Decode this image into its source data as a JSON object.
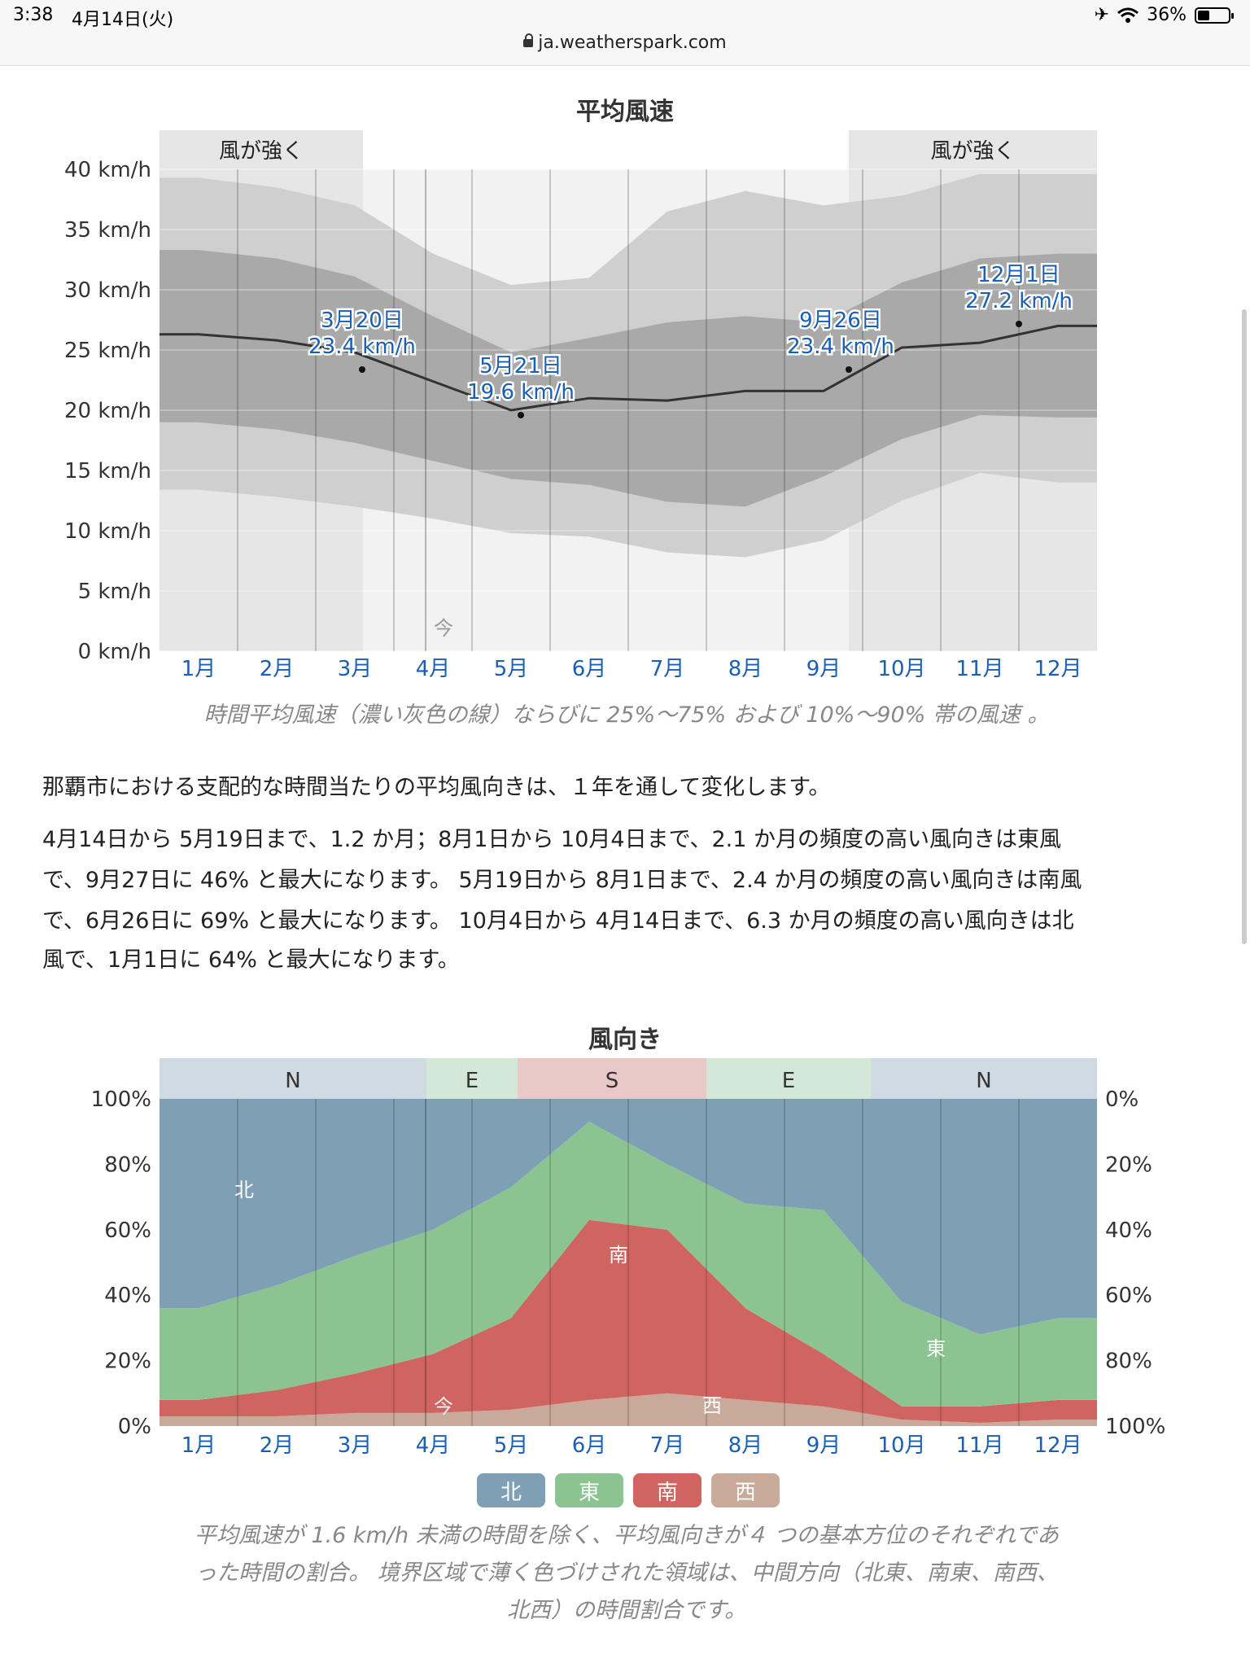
{
  "status_bar": {
    "time": "3:38",
    "date": "4月14日(火)",
    "battery": "36%",
    "url": "ja.weatherspark.com"
  },
  "wind_speed": {
    "title": "平均風速",
    "y_ticks": [
      "40 km/h",
      "35 km/h",
      "30 km/h",
      "25 km/h",
      "20 km/h",
      "15 km/h",
      "10 km/h",
      "5 km/h",
      "0 km/h"
    ],
    "months": [
      "1月",
      "2月",
      "3月",
      "4月",
      "5月",
      "6月",
      "7月",
      "8月",
      "9月",
      "10月",
      "11月",
      "12月"
    ],
    "windy_label": "風が強く",
    "today_label": "今",
    "annotations": [
      {
        "date": "3月20日",
        "value": "23.4 km/h"
      },
      {
        "date": "5月21日",
        "value": "19.6 km/h"
      },
      {
        "date": "9月26日",
        "value": "23.4 km/h"
      },
      {
        "date": "12月1日",
        "value": "27.2 km/h"
      }
    ],
    "caption": "時間平均風速（濃い灰色の線）ならびに 25%〜75% および 10%〜90% 帯の風速 。"
  },
  "paragraphs": {
    "p1": "那覇市における支配的な時間当たりの平均風向きは、１年を通して変化します。",
    "p2_l1": "4月14日から 5月19日まで、1.2 か月；8月1日から 10月4日まで、2.1 か月の頻度の高い風向きは東風",
    "p2_l2": "で、9月27日に 46% と最大になります。 5月19日から 8月1日まで、2.4 か月の頻度の高い風向きは南風",
    "p2_l3": "で、6月26日に 69% と最大になります。 10月4日から 4月14日まで、6.3 か月の頻度の高い風向きは北",
    "p2_l4": "風で、1月1日に 64% と最大になります。"
  },
  "wind_direction": {
    "title": "風向き",
    "bands": [
      {
        "label": "N",
        "color": "#cfdae3"
      },
      {
        "label": "E",
        "color": "#d4e8d7"
      },
      {
        "label": "S",
        "color": "#e9c8c8"
      },
      {
        "label": "E",
        "color": "#d4e8d7"
      },
      {
        "label": "N",
        "color": "#cfdae3"
      }
    ],
    "y_left": [
      "100%",
      "80%",
      "60%",
      "40%",
      "20%",
      "0%"
    ],
    "y_right": [
      "0%",
      "20%",
      "40%",
      "60%",
      "80%",
      "100%"
    ],
    "area_labels": {
      "north": "北",
      "east": "東",
      "south": "南",
      "west": "西"
    },
    "today_label": "今",
    "legend": [
      {
        "label": "北",
        "color": "#7f9fb5"
      },
      {
        "label": "東",
        "color": "#8cc491"
      },
      {
        "label": "南",
        "color": "#cf6460"
      },
      {
        "label": "西",
        "color": "#c9a99a"
      }
    ],
    "caption_l1": "平均風速が 1.6 km/h 未満の時間を除く、平均風向きが４ つの基本方位のそれぞれであ",
    "caption_l2": "った時間の割合。 境界区域で薄く色づけされた領域は、中間方向（北東、南東、南西、",
    "caption_l3": "北西）の時間割合です。"
  },
  "chart_data": [
    {
      "type": "area",
      "title": "平均風速",
      "ylim": [
        0,
        40
      ],
      "x": [
        "1月",
        "2月",
        "3月",
        "4月",
        "5月",
        "6月",
        "7月",
        "8月",
        "9月",
        "10月",
        "11月",
        "12月"
      ],
      "series": [
        {
          "name": "10%",
          "values": [
            13.4,
            12.8,
            12.0,
            11.0,
            9.8,
            9.5,
            8.2,
            7.8,
            9.2,
            12.5,
            14.8,
            14.0
          ]
        },
        {
          "name": "25%",
          "values": [
            19.0,
            18.4,
            17.3,
            15.8,
            14.3,
            13.8,
            12.4,
            12.0,
            14.5,
            17.6,
            19.6,
            19.4
          ]
        },
        {
          "name": "時間平均風速",
          "values": [
            26.3,
            25.8,
            24.8,
            22.4,
            20.0,
            21.0,
            20.8,
            21.6,
            21.6,
            25.2,
            25.6,
            27.0
          ]
        },
        {
          "name": "75%",
          "values": [
            33.3,
            32.6,
            31.1,
            27.8,
            24.8,
            26.0,
            27.3,
            27.8,
            27.3,
            30.6,
            32.6,
            33.0
          ]
        },
        {
          "name": "90%",
          "values": [
            39.3,
            38.5,
            37.0,
            33.0,
            30.4,
            31.0,
            36.5,
            38.2,
            37.0,
            37.8,
            39.6,
            39.6
          ]
        }
      ]
    },
    {
      "type": "area",
      "title": "風向き",
      "ylim": [
        0,
        100
      ],
      "x": [
        "1月",
        "2月",
        "3月",
        "4月",
        "5月",
        "6月",
        "7月",
        "8月",
        "9月",
        "10月",
        "11月",
        "12月"
      ],
      "series": [
        {
          "name": "西",
          "values": [
            3,
            3,
            4,
            4,
            5,
            8,
            10,
            8,
            6,
            2,
            1,
            2
          ]
        },
        {
          "name": "南",
          "values": [
            5,
            8,
            12,
            18,
            28,
            55,
            50,
            28,
            16,
            4,
            5,
            6
          ]
        },
        {
          "name": "東",
          "values": [
            28,
            32,
            36,
            38,
            40,
            30,
            20,
            32,
            44,
            32,
            22,
            25
          ]
        },
        {
          "name": "北",
          "values": [
            64,
            57,
            48,
            40,
            27,
            7,
            20,
            32,
            34,
            62,
            72,
            67
          ]
        }
      ]
    }
  ]
}
